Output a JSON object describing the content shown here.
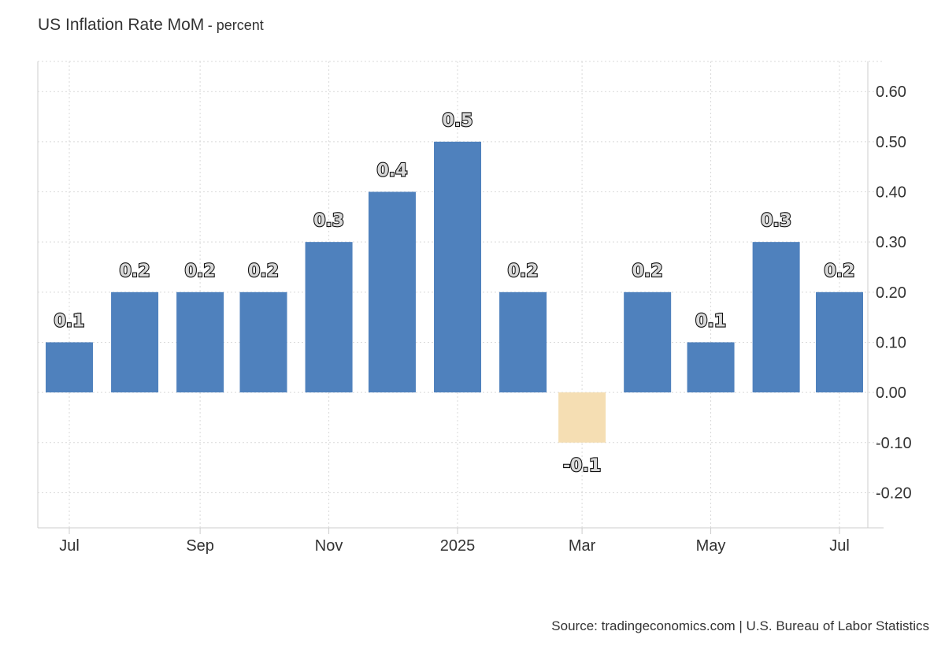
{
  "header": {
    "title": "US Inflation Rate MoM",
    "subtitle": "- percent"
  },
  "footer": {
    "source": "Source: tradingeconomics.com | U.S. Bureau of Labor Statistics"
  },
  "chart_data": {
    "type": "bar",
    "title": "US Inflation Rate MoM",
    "unit": "percent",
    "categories": [
      "2024-07",
      "2024-08",
      "2024-09",
      "2024-10",
      "2024-11",
      "2024-12",
      "2025-01",
      "2025-02",
      "2025-03",
      "2025-04",
      "2025-05",
      "2025-06",
      "2025-07"
    ],
    "values": [
      0.1,
      0.2,
      0.2,
      0.2,
      0.3,
      0.4,
      0.5,
      0.2,
      -0.1,
      0.2,
      0.1,
      0.3,
      0.2
    ],
    "data_labels": [
      "0.1",
      "0.2",
      "0.2",
      "0.2",
      "0.3",
      "0.4",
      "0.5",
      "0.2",
      "-0.1",
      "0.2",
      "0.1",
      "0.3",
      "0.2"
    ],
    "x_tick_labels": [
      {
        "category": "2024-07",
        "label": "Jul"
      },
      {
        "category": "2024-09",
        "label": "Sep"
      },
      {
        "category": "2024-11",
        "label": "Nov"
      },
      {
        "category": "2025-01",
        "label": "2025"
      },
      {
        "category": "2025-03",
        "label": "Mar"
      },
      {
        "category": "2025-05",
        "label": "May"
      },
      {
        "category": "2025-07",
        "label": "Jul"
      }
    ],
    "y_ticks": [
      -0.2,
      -0.1,
      0.0,
      0.1,
      0.2,
      0.3,
      0.4,
      0.5,
      0.6
    ],
    "y_tick_labels": [
      "-0.20",
      "-0.10",
      "0.00",
      "0.10",
      "0.20",
      "0.30",
      "0.40",
      "0.50",
      "0.60"
    ],
    "ylim": [
      -0.27,
      0.66
    ],
    "y_axis_side": "right",
    "grid": true,
    "colors": {
      "positive": "#4f81bd",
      "negative": "#f5deb3",
      "grid": "#d9d9d9",
      "axis": "#cccccc"
    }
  }
}
